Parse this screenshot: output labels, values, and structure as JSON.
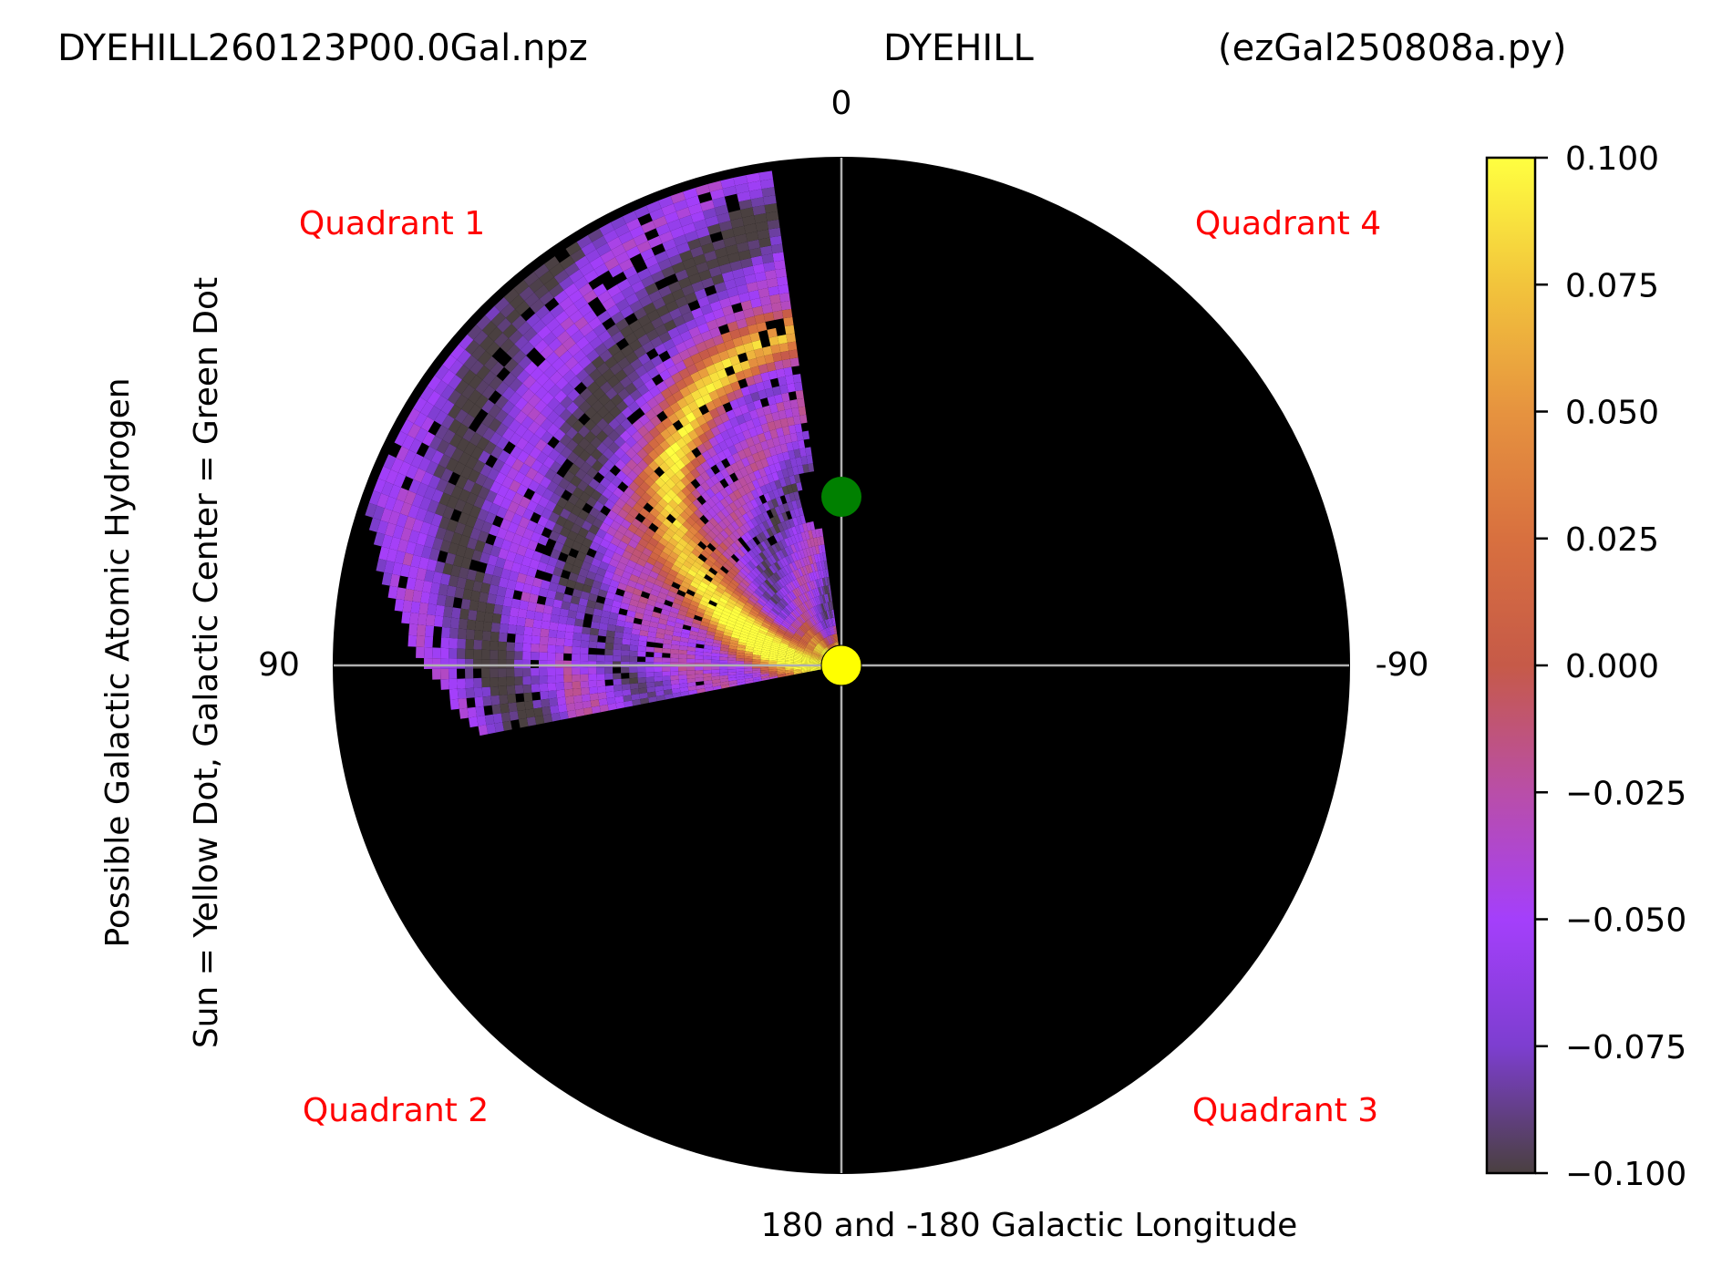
{
  "header": {
    "filename": "DYEHILL260123P00.0Gal.npz",
    "station": "DYEHILL",
    "script": "(ezGal250808a.py)"
  },
  "chart_data": {
    "type": "heatmap",
    "projection": "polar",
    "title": "DYEHILL260123P00.0Gal.npz          DYEHILL          (ezGal250808a.py)",
    "xlabel": "180 and -180 Galactic Longitude",
    "ylabel_line1": "Possible Galactic Atomic Hydrogen",
    "ylabel_line2": "Sun = Yellow Dot, Galactic Center = Green Dot",
    "angle_labels": {
      "top": "0",
      "left": "90",
      "right": "-90"
    },
    "quadrant_labels": [
      "Quadrant 1",
      "Quadrant 4",
      "Quadrant 2",
      "Quadrant 3"
    ],
    "longitude_coverage_deg": [
      8,
      100
    ],
    "colorbar": {
      "vmin": -0.1,
      "vmax": 0.1,
      "ticks": [
        "0.100",
        "0.075",
        "0.050",
        "0.025",
        "0.000",
        "−0.025",
        "−0.050",
        "−0.075",
        "−0.100"
      ],
      "colors": [
        "#ffff40",
        "#f2c43c",
        "#e6933f",
        "#d8703f",
        "#c65a48",
        "#b94ea8",
        "#a43ffb",
        "#7d3ed0",
        "#4a4040"
      ]
    },
    "markers": {
      "sun_color": "#ffff00",
      "galactic_center_color": "#008000"
    },
    "background": "#000000",
    "grid_color": "#b0b0b0",
    "quadrant_label_color": "#ff0000"
  }
}
